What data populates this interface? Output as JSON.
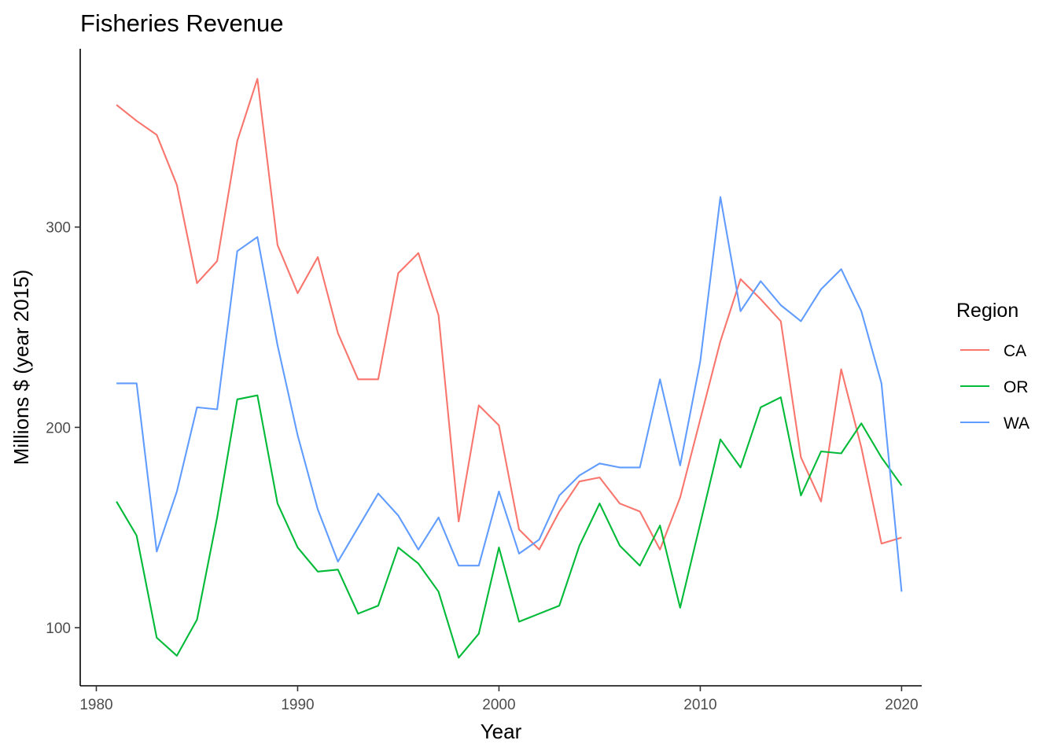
{
  "chart_data": {
    "type": "line",
    "title": "Fisheries Revenue",
    "xlabel": "Year",
    "ylabel": "Millions $ (year 2015)",
    "xlim": [
      1979.2,
      2021.0
    ],
    "ylim": [
      71,
      389
    ],
    "x_ticks": [
      1980,
      1990,
      2000,
      2010,
      2020
    ],
    "x_tick_labels": [
      "1980",
      "1990",
      "2000",
      "2010",
      "2020"
    ],
    "y_ticks": [
      100,
      200,
      300
    ],
    "y_tick_labels": [
      "100",
      "200",
      "300"
    ],
    "grid": false,
    "legend": {
      "title": "Region",
      "position": "right"
    },
    "x": [
      1981,
      1982,
      1983,
      1984,
      1985,
      1986,
      1987,
      1988,
      1989,
      1990,
      1991,
      1992,
      1993,
      1994,
      1995,
      1996,
      1997,
      1998,
      1999,
      2000,
      2001,
      2002,
      2003,
      2004,
      2005,
      2006,
      2007,
      2008,
      2009,
      2010,
      2011,
      2012,
      2013,
      2014,
      2015,
      2016,
      2017,
      2018,
      2019,
      2020
    ],
    "series": [
      {
        "name": "CA",
        "color": "#F8766D",
        "values": [
          361,
          353,
          346,
          321,
          272,
          283,
          343,
          374,
          291,
          267,
          285,
          247,
          224,
          224,
          277,
          287,
          256,
          153,
          211,
          201,
          149,
          139,
          158,
          173,
          175,
          162,
          158,
          139,
          165,
          204,
          243,
          274,
          264,
          253,
          185,
          163,
          229,
          190,
          142,
          145
        ]
      },
      {
        "name": "OR",
        "color": "#00BA38",
        "values": [
          163,
          146,
          95,
          86,
          104,
          155,
          214,
          216,
          162,
          140,
          128,
          129,
          107,
          111,
          140,
          132,
          118,
          85,
          97,
          140,
          103,
          107,
          111,
          141,
          162,
          141,
          131,
          151,
          110,
          152,
          194,
          180,
          210,
          215,
          166,
          188,
          187,
          202,
          185,
          171
        ]
      },
      {
        "name": "WA",
        "color": "#619CFF",
        "values": [
          222,
          222,
          138,
          168,
          210,
          209,
          288,
          295,
          241,
          196,
          159,
          133,
          150,
          167,
          156,
          139,
          155,
          131,
          131,
          168,
          137,
          144,
          166,
          176,
          182,
          180,
          180,
          224,
          181,
          233,
          315,
          258,
          273,
          261,
          253,
          269,
          279,
          258,
          222,
          118
        ]
      }
    ]
  }
}
